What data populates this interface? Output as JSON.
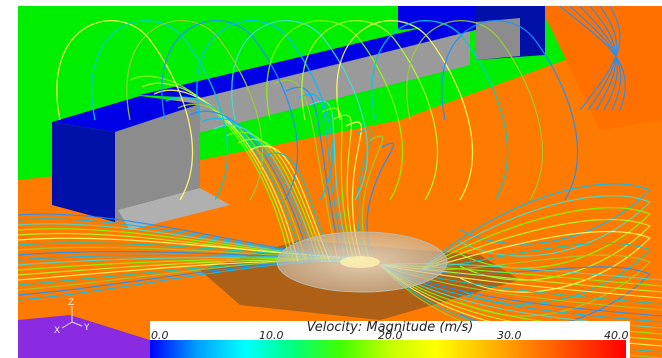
{
  "colorbar": {
    "title": "Velocity: Magnitude (m/s)",
    "ticks": [
      "0.0",
      "10.0",
      "20.0",
      "30.0",
      "40.0"
    ],
    "min": 0,
    "max": 40,
    "colors": [
      "#0000ff",
      "#00a0ff",
      "#00ffff",
      "#00ff80",
      "#40ff00",
      "#c0ff00",
      "#ffff00",
      "#ffc000",
      "#ff8000",
      "#ff4000",
      "#ff0000"
    ]
  },
  "triad": {
    "z": "Z",
    "x": "X",
    "y": "Y"
  },
  "scene_colors": {
    "wall": "#00ee00",
    "floor": "#ff7a00",
    "block_top": "#0000e6",
    "block_side": "#0010a8",
    "block_back": "#9a9a9a",
    "disk": "#d8c8b0",
    "strip": "#8a2be2"
  }
}
